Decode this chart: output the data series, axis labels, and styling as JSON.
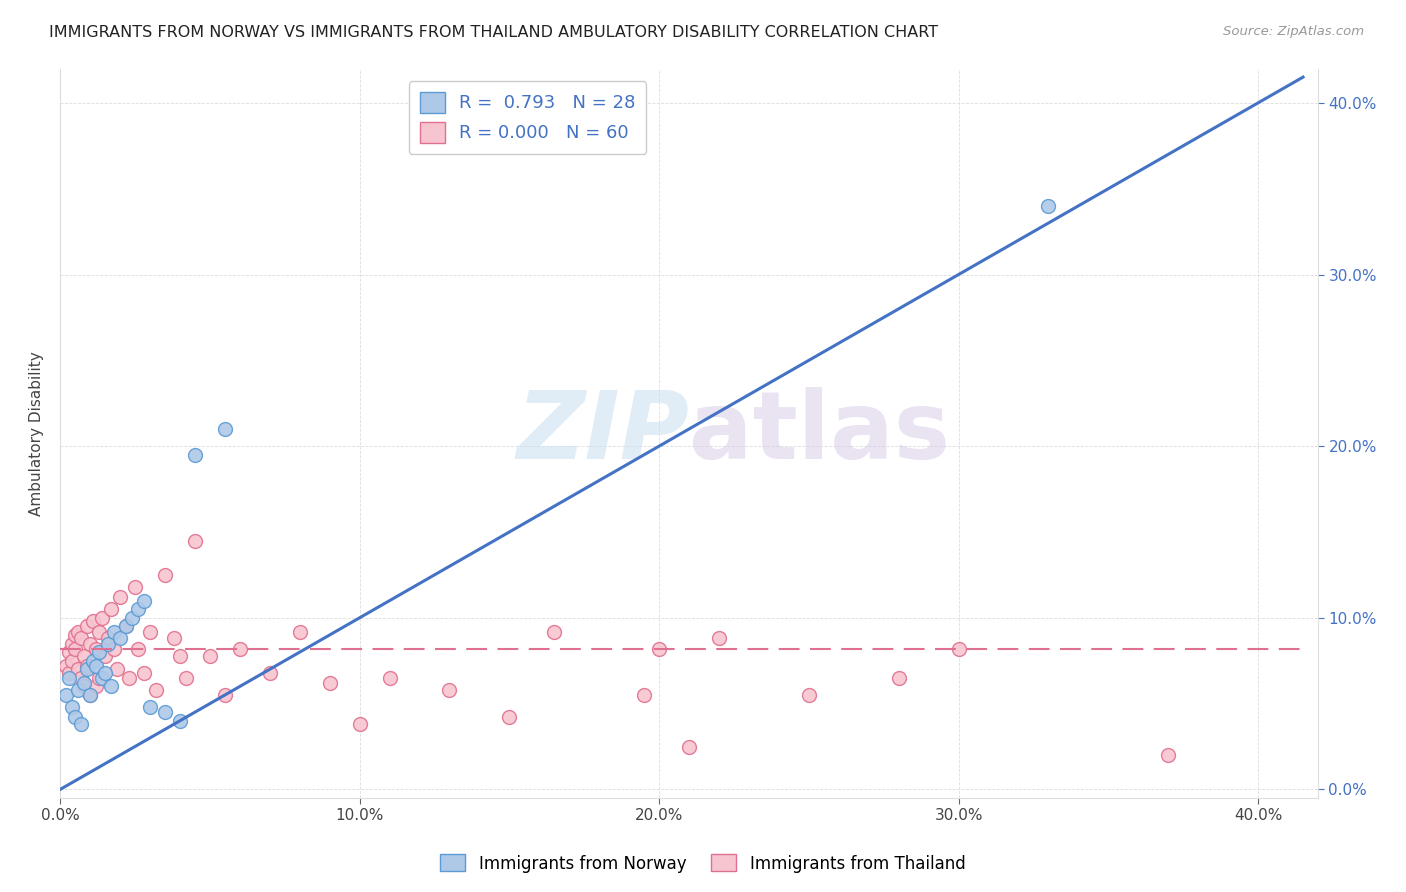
{
  "title": "IMMIGRANTS FROM NORWAY VS IMMIGRANTS FROM THAILAND AMBULATORY DISABILITY CORRELATION CHART",
  "source": "Source: ZipAtlas.com",
  "ylabel": "Ambulatory Disability",
  "xlim": [
    0.0,
    0.42
  ],
  "ylim": [
    -0.005,
    0.42
  ],
  "xtick_vals": [
    0.0,
    0.1,
    0.2,
    0.3,
    0.4
  ],
  "ytick_vals": [
    0.0,
    0.1,
    0.2,
    0.3,
    0.4
  ],
  "norway_color": "#aec9e8",
  "norway_edge_color": "#5b9bd5",
  "thailand_color": "#f7c5d0",
  "thailand_edge_color": "#e07090",
  "norway_R": 0.793,
  "norway_N": 28,
  "thailand_R": 0.0,
  "thailand_N": 60,
  "norway_line_color": "#4472c4",
  "thailand_line_color": "#e07090",
  "thailand_line_y": 0.082,
  "norway_line_x0": 0.0,
  "norway_line_y0": 0.0,
  "norway_line_x1": 0.415,
  "norway_line_y1": 0.415,
  "norway_x": [
    0.002,
    0.003,
    0.004,
    0.005,
    0.006,
    0.007,
    0.008,
    0.009,
    0.01,
    0.011,
    0.012,
    0.013,
    0.014,
    0.015,
    0.016,
    0.017,
    0.018,
    0.02,
    0.022,
    0.024,
    0.026,
    0.028,
    0.03,
    0.035,
    0.04,
    0.045,
    0.055,
    0.33
  ],
  "norway_y": [
    0.055,
    0.065,
    0.048,
    0.042,
    0.058,
    0.038,
    0.062,
    0.07,
    0.055,
    0.075,
    0.072,
    0.08,
    0.065,
    0.068,
    0.085,
    0.06,
    0.092,
    0.088,
    0.095,
    0.1,
    0.105,
    0.11,
    0.048,
    0.045,
    0.04,
    0.195,
    0.21,
    0.34
  ],
  "thailand_x": [
    0.002,
    0.003,
    0.003,
    0.004,
    0.004,
    0.005,
    0.005,
    0.006,
    0.006,
    0.007,
    0.007,
    0.008,
    0.008,
    0.009,
    0.009,
    0.01,
    0.01,
    0.011,
    0.012,
    0.012,
    0.013,
    0.013,
    0.014,
    0.015,
    0.016,
    0.017,
    0.018,
    0.019,
    0.02,
    0.022,
    0.023,
    0.025,
    0.026,
    0.028,
    0.03,
    0.032,
    0.035,
    0.038,
    0.04,
    0.042,
    0.045,
    0.05,
    0.055,
    0.06,
    0.07,
    0.08,
    0.09,
    0.1,
    0.11,
    0.13,
    0.15,
    0.165,
    0.195,
    0.2,
    0.21,
    0.22,
    0.25,
    0.28,
    0.3,
    0.37
  ],
  "thailand_y": [
    0.072,
    0.068,
    0.08,
    0.085,
    0.075,
    0.09,
    0.082,
    0.07,
    0.092,
    0.065,
    0.088,
    0.078,
    0.06,
    0.095,
    0.072,
    0.085,
    0.055,
    0.098,
    0.082,
    0.06,
    0.092,
    0.065,
    0.1,
    0.078,
    0.088,
    0.105,
    0.082,
    0.07,
    0.112,
    0.095,
    0.065,
    0.118,
    0.082,
    0.068,
    0.092,
    0.058,
    0.125,
    0.088,
    0.078,
    0.065,
    0.145,
    0.078,
    0.055,
    0.082,
    0.068,
    0.092,
    0.062,
    0.038,
    0.065,
    0.058,
    0.042,
    0.092,
    0.055,
    0.082,
    0.025,
    0.088,
    0.055,
    0.065,
    0.082,
    0.02
  ]
}
